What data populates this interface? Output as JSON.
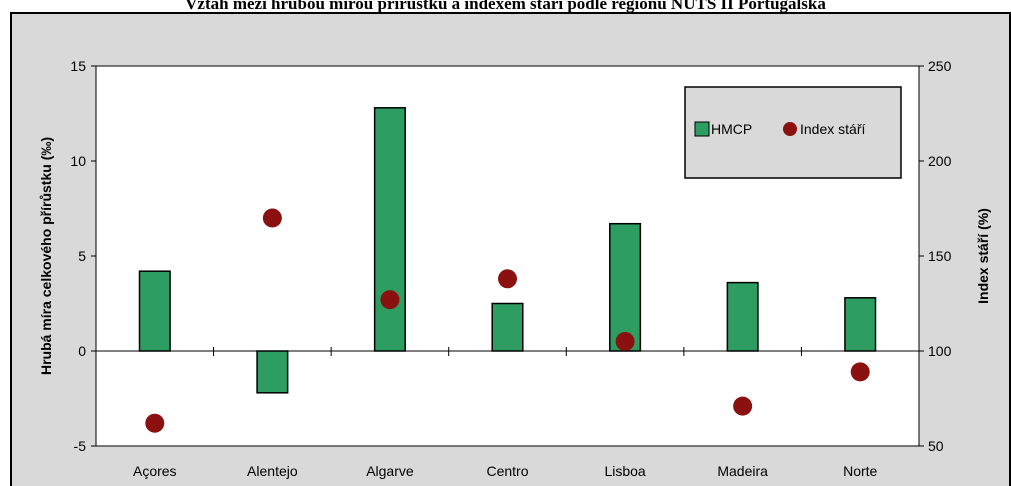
{
  "title": "Vztah mezi hrubou mírou přírůstku a indexem stáří podle regionů NUTS II Portugalska",
  "chart_data": {
    "type": "bar",
    "categories": [
      "Açores",
      "Alentejo",
      "Algarve",
      "Centro",
      "Lisboa",
      "Madeira",
      "Norte"
    ],
    "series": [
      {
        "name": "HMCP",
        "type": "bar",
        "axis": "left",
        "color": "#2e9d62",
        "values": [
          4.2,
          -2.2,
          12.8,
          2.5,
          6.7,
          3.6,
          2.8
        ]
      },
      {
        "name": "Index stáří",
        "type": "scatter",
        "axis": "right",
        "color": "#8b1010",
        "values": [
          62,
          170,
          127,
          138,
          105,
          71,
          89
        ]
      }
    ],
    "ylabel": "Hrubá míra celkového přírůstku (‰)",
    "y2label": "Index stáří (%)",
    "ylim": [
      -5,
      15
    ],
    "y2lim": [
      50,
      250
    ],
    "yticks": [
      -5,
      0,
      5,
      10,
      15
    ],
    "y2ticks": [
      50,
      100,
      150,
      200,
      250
    ],
    "legend_position": "top-right",
    "plot_background": "#d9d9d9",
    "grid": false
  }
}
